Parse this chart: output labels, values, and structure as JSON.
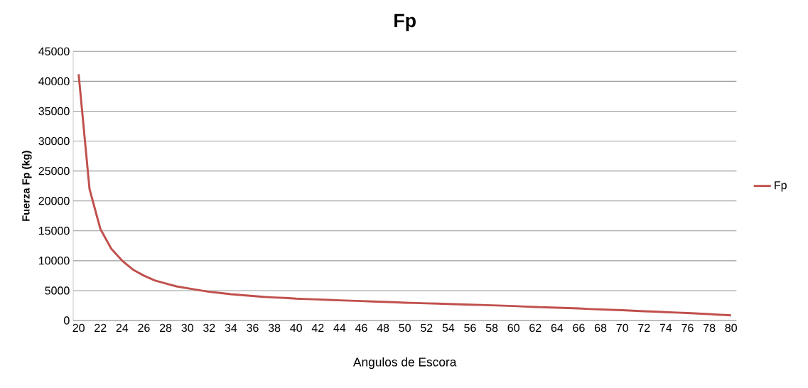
{
  "chart_data": {
    "type": "line",
    "title": "Fp",
    "xlabel": "Angulos de Escora",
    "ylabel": "Fuerza Fp (kg)",
    "categories": [
      "20",
      null,
      "22",
      null,
      "24",
      null,
      "26",
      null,
      "28",
      null,
      "30",
      null,
      "32",
      null,
      "34",
      null,
      "36",
      null,
      "38",
      null,
      "40",
      null,
      "42",
      null,
      "44",
      null,
      "46",
      null,
      "48",
      null,
      "50",
      null,
      "52",
      null,
      "54",
      null,
      "56",
      null,
      "58",
      null,
      "60",
      null,
      "62",
      null,
      "64",
      null,
      "66",
      null,
      "68",
      null,
      "70",
      null,
      "72",
      null,
      "74",
      null,
      "76",
      null,
      "78",
      null,
      "80"
    ],
    "series": [
      {
        "name": "Fp",
        "color": "#c0504d",
        "values": [
          41200,
          22000,
          15300,
          12000,
          10000,
          8500,
          7500,
          6700,
          6200,
          5700,
          5400,
          5100,
          4800,
          4600,
          4400,
          4250,
          4100,
          3950,
          3850,
          3780,
          3650,
          3580,
          3520,
          3450,
          3370,
          3310,
          3250,
          3180,
          3120,
          3050,
          2980,
          2930,
          2870,
          2820,
          2760,
          2700,
          2650,
          2600,
          2540,
          2480,
          2420,
          2330,
          2250,
          2200,
          2140,
          2080,
          2020,
          1920,
          1850,
          1780,
          1720,
          1630,
          1550,
          1480,
          1390,
          1320,
          1240,
          1150,
          1070,
          960,
          870
        ]
      }
    ],
    "ylim": [
      0,
      45000
    ],
    "yticks": [
      0,
      5000,
      10000,
      15000,
      20000,
      25000,
      30000,
      35000,
      40000,
      45000
    ],
    "grid": "y",
    "legend": "right"
  }
}
